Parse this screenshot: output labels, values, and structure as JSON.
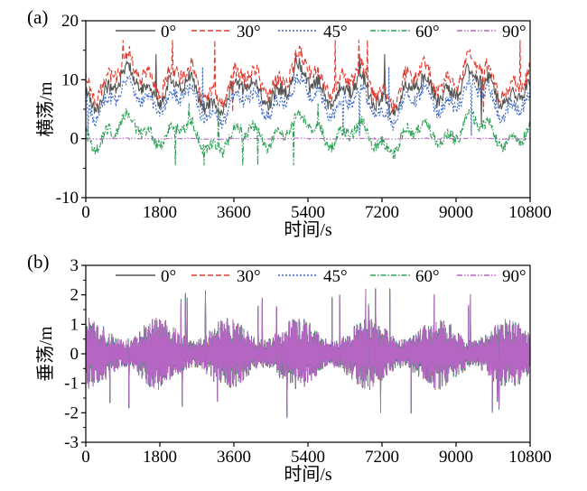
{
  "chart_data": [
    {
      "type": "line",
      "panel_label": "(a)",
      "xlabel": "时间/s",
      "ylabel": "横荡/m",
      "xlim": [
        0,
        10800
      ],
      "ylim": [
        -10,
        20
      ],
      "x_ticks": [
        "0",
        "1800",
        "3600",
        "5400",
        "7200",
        "9000",
        "10800"
      ],
      "y_ticks": [
        "-10",
        "0",
        "10",
        "20"
      ],
      "legend_position": "top",
      "series": [
        {
          "name": "0°",
          "color": "#555555",
          "dash": "solid",
          "base": 8.2,
          "amplitude": 2.2,
          "min": 2.5,
          "max": 17.0
        },
        {
          "name": "30°",
          "color": "#e03a2f",
          "dash": "dashed",
          "base": 10.0,
          "amplitude": 2.4,
          "min": 4.5,
          "max": 17.5
        },
        {
          "name": "45°",
          "color": "#3b66c4",
          "dash": "dotted",
          "base": 6.3,
          "amplitude": 2.1,
          "min": 0.5,
          "max": 13.0
        },
        {
          "name": "60°",
          "color": "#2f9e55",
          "dash": "dashdot",
          "base": 0.8,
          "amplitude": 1.9,
          "min": -6.5,
          "max": 6.0
        },
        {
          "name": "90°",
          "color": "#b565c2",
          "dash": "dashdotdot",
          "base": 0.0,
          "amplitude": 0.05,
          "min": -0.2,
          "max": 0.2
        }
      ]
    },
    {
      "type": "line",
      "panel_label": "(b)",
      "xlabel": "时间/s",
      "ylabel": "垂荡/m",
      "xlim": [
        0,
        10800
      ],
      "ylim": [
        -3,
        3
      ],
      "x_ticks": [
        "0",
        "1800",
        "3600",
        "5400",
        "7200",
        "9000",
        "10800"
      ],
      "y_ticks": [
        "-3",
        "-2",
        "-1",
        "0",
        "1",
        "2",
        "3"
      ],
      "legend_position": "top",
      "series": [
        {
          "name": "0°",
          "color": "#555555",
          "dash": "solid",
          "base": 0,
          "amplitude": 0.8,
          "min": -2.3,
          "max": 2.3
        },
        {
          "name": "30°",
          "color": "#e03a2f",
          "dash": "dashed",
          "base": 0,
          "amplitude": 0.8,
          "min": -2.3,
          "max": 2.3
        },
        {
          "name": "45°",
          "color": "#3b66c4",
          "dash": "dotted",
          "base": 0,
          "amplitude": 0.8,
          "min": -2.3,
          "max": 2.3
        },
        {
          "name": "60°",
          "color": "#2f9e55",
          "dash": "dashdot",
          "base": 0,
          "amplitude": 0.8,
          "min": -2.3,
          "max": 2.3
        },
        {
          "name": "90°",
          "color": "#b565c2",
          "dash": "dashdotdot",
          "base": 0,
          "amplitude": 0.8,
          "min": -2.3,
          "max": 2.3
        }
      ]
    }
  ]
}
